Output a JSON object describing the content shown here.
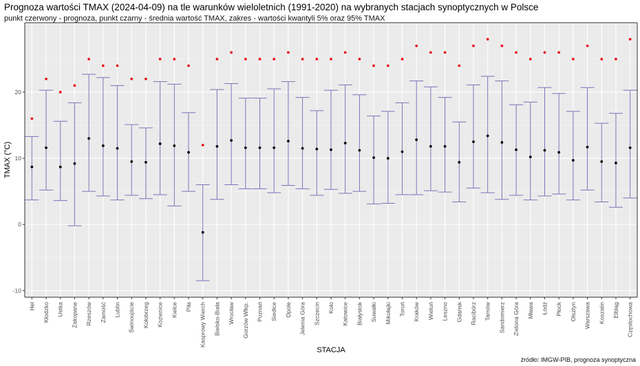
{
  "title": "Prognoza wartości TMAX (2024-04-09) na tle warunków wieloletnich (1991-2020) na wybranych stacjach synoptycznych w Polsce",
  "subtitle": "punkt czerwony - prognoza, punkt czarny - średnia wartość TMAX, zakres - wartości kwantyli 5% oraz 95% TMAX",
  "caption": "źródło: IMGW-PIB, prognoza synoptyczna",
  "chart_data": {
    "type": "errorbar-scatter",
    "xlabel": "STACJA",
    "ylabel": "TMAX (°C)",
    "ylim": [
      -11,
      30.5
    ],
    "yticks": [
      -10,
      0,
      10,
      20
    ],
    "grid": true,
    "colors": {
      "forecast": "#e8141c",
      "mean": "#000000",
      "range": "#7b72b8",
      "panel": "#ebebeb"
    },
    "categories": [
      "Hel",
      "Kłodzko",
      "Ustka",
      "Zakopane",
      "Rzeszów",
      "Zamość",
      "Lublin",
      "Świnoujście",
      "Kołobrzeg",
      "Kozienice",
      "Kielce",
      "Piła",
      "Kasprowy Wierch",
      "Bielsko-Biała",
      "Wrocław",
      "Gorzów Wlkp.",
      "Poznań",
      "Siedlce",
      "Opole",
      "Jelenia Góra",
      "Szczecin",
      "Koło",
      "Katowice",
      "Białystok",
      "Suwałki",
      "Mikołajki",
      "Toruń",
      "Kraków",
      "Wieluń",
      "Leszno",
      "Gdańsk",
      "Racibórz",
      "Tarnów",
      "Sandomierz",
      "Zielona Góra",
      "Mława",
      "Łódź",
      "Płock",
      "Olsztyn",
      "Warszawa",
      "Koszalin",
      "Elbląg",
      "Częstochowa"
    ],
    "forecast": [
      16,
      22,
      20,
      21,
      25,
      24,
      24,
      22,
      22,
      25,
      25,
      24,
      12,
      25,
      26,
      25,
      25,
      25,
      26,
      25,
      25,
      25,
      26,
      25,
      24,
      24,
      25,
      27,
      26,
      26,
      24,
      27,
      28,
      27,
      26,
      25,
      26,
      26,
      25,
      27,
      25,
      25,
      28
    ],
    "mean": [
      8.7,
      11.6,
      8.7,
      9.2,
      13.0,
      11.9,
      11.5,
      9.5,
      9.4,
      12.2,
      11.9,
      10.9,
      -1.2,
      11.8,
      12.7,
      11.6,
      11.6,
      11.6,
      12.6,
      11.5,
      11.4,
      11.3,
      12.3,
      11.2,
      10.1,
      10.0,
      11.0,
      12.8,
      11.8,
      11.8,
      9.4,
      12.5,
      13.4,
      12.4,
      11.3,
      10.2,
      11.2,
      10.9,
      9.7,
      11.7,
      9.5,
      9.3,
      11.6
    ],
    "q05": [
      3.7,
      5.2,
      3.6,
      -0.2,
      5.0,
      4.3,
      3.7,
      4.4,
      3.9,
      4.5,
      2.8,
      5.0,
      -8.5,
      3.8,
      6.0,
      5.4,
      5.4,
      4.8,
      5.9,
      5.4,
      4.4,
      5.3,
      4.7,
      5.0,
      3.1,
      3.2,
      4.5,
      4.5,
      5.1,
      4.9,
      3.4,
      5.5,
      4.8,
      3.8,
      4.4,
      3.7,
      4.3,
      4.6,
      3.7,
      5.2,
      3.4,
      2.6,
      4.0
    ],
    "q95": [
      13.3,
      20.3,
      15.6,
      18.4,
      22.7,
      22.2,
      21.0,
      15.1,
      14.6,
      21.6,
      21.2,
      16.9,
      6.0,
      20.4,
      21.3,
      19.1,
      19.1,
      20.5,
      21.6,
      19.2,
      17.2,
      20.3,
      21.1,
      19.6,
      16.4,
      17.1,
      18.4,
      21.7,
      20.8,
      19.2,
      15.5,
      21.1,
      22.4,
      21.7,
      18.1,
      18.5,
      20.7,
      19.8,
      17.1,
      20.7,
      15.3,
      16.8,
      20.3
    ]
  }
}
